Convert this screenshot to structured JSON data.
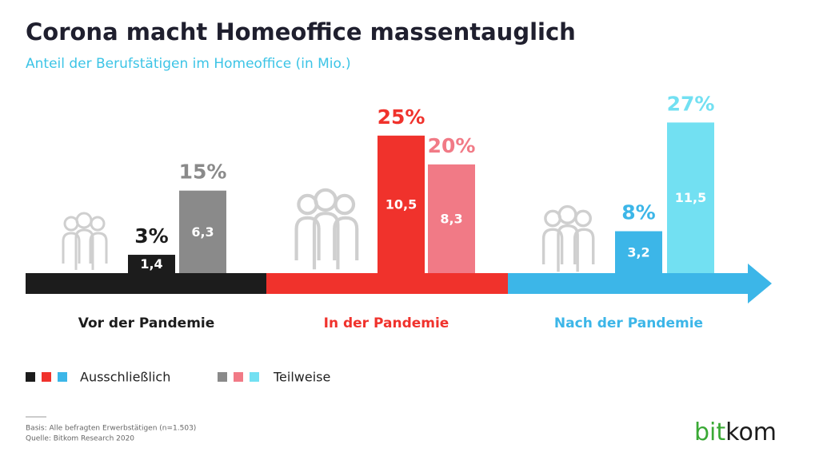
{
  "chart_data": {
    "type": "bar",
    "title": "Corona macht Homeoffice massentauglich",
    "subtitle": "Anteil der Berufstätigen im Homeoffice (in Mio.)",
    "categories": [
      "Vor der Pandemie",
      "In der Pandemie",
      "Nach der Pandemie"
    ],
    "category_colors": [
      "#1c1c1c",
      "#f0322c",
      "#3cb6e8"
    ],
    "series": [
      {
        "name": "Ausschließlich",
        "colors": [
          "#1c1c1c",
          "#f0322c",
          "#3cb6e8"
        ],
        "values": [
          1.4,
          10.5,
          3.2
        ],
        "value_labels": [
          "1,4",
          "10,5",
          "3,2"
        ],
        "share_labels": [
          "3%",
          "25%",
          "8%"
        ]
      },
      {
        "name": "Teilweise",
        "colors": [
          "#8a8a8a",
          "#f17a86",
          "#72e0f2"
        ],
        "values": [
          6.3,
          8.3,
          11.5
        ],
        "value_labels": [
          "6,3",
          "8,3",
          "11,5"
        ],
        "share_labels": [
          "15%",
          "20%",
          "27%"
        ]
      }
    ],
    "notes": [
      "Basis: Alle befragten Erwerbstätigen (n=1.503)",
      "Quelle: Bitkom Research 2020"
    ],
    "logo": [
      "bit",
      "kom"
    ],
    "logo_colors": [
      "#3aa935",
      "#1c1c1c"
    ]
  }
}
